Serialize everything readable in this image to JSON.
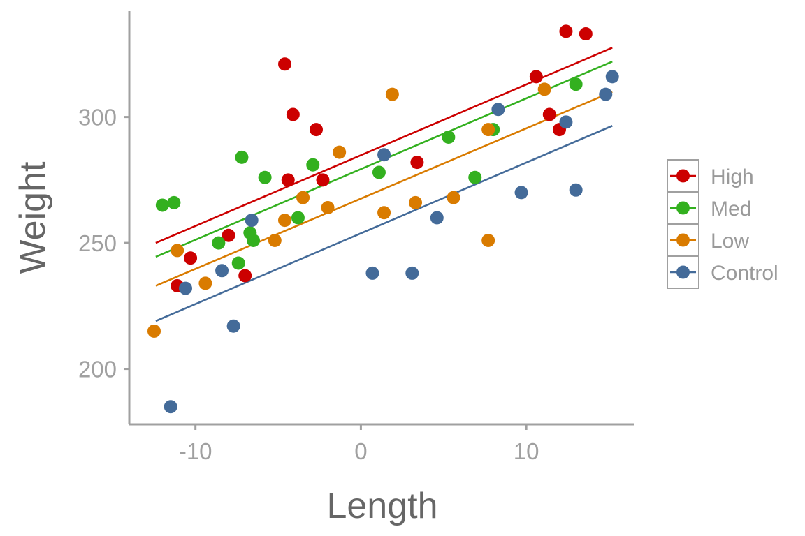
{
  "chart_data": {
    "type": "scatter",
    "title": "",
    "xlabel": "Length",
    "ylabel": "Weight",
    "xlim": [
      -14,
      16.5
    ],
    "ylim": [
      178,
      342
    ],
    "x_ticks": [
      -10,
      0,
      10
    ],
    "y_ticks": [
      200,
      250,
      300
    ],
    "x_tick_labels": [
      "-10",
      "0",
      "10"
    ],
    "y_tick_labels": [
      "200",
      "250",
      "300"
    ],
    "grid": false,
    "legend_position": "right",
    "series": [
      {
        "name": "High",
        "color": "#cc0000",
        "fit": {
          "x": [
            -12.4,
            15.2
          ],
          "y": [
            250,
            327.5
          ]
        },
        "points": [
          {
            "x": -4.6,
            "y": 321
          },
          {
            "x": -4.1,
            "y": 301
          },
          {
            "x": -2.7,
            "y": 295
          },
          {
            "x": -4.4,
            "y": 275
          },
          {
            "x": -2.3,
            "y": 275
          },
          {
            "x": -8.0,
            "y": 253
          },
          {
            "x": -10.3,
            "y": 244
          },
          {
            "x": -11.1,
            "y": 233
          },
          {
            "x": -7.0,
            "y": 237
          },
          {
            "x": 3.4,
            "y": 282
          },
          {
            "x": 10.6,
            "y": 316
          },
          {
            "x": 11.4,
            "y": 301
          },
          {
            "x": 12.0,
            "y": 295
          },
          {
            "x": 12.4,
            "y": 334
          },
          {
            "x": 13.6,
            "y": 333
          }
        ]
      },
      {
        "name": "Med",
        "color": "#33b01f",
        "fit": {
          "x": [
            -12.4,
            15.2
          ],
          "y": [
            244.5,
            322
          ]
        },
        "points": [
          {
            "x": -12.0,
            "y": 265
          },
          {
            "x": -11.3,
            "y": 266
          },
          {
            "x": -7.2,
            "y": 284
          },
          {
            "x": -5.8,
            "y": 276
          },
          {
            "x": -2.9,
            "y": 281
          },
          {
            "x": -8.6,
            "y": 250
          },
          {
            "x": -7.4,
            "y": 242
          },
          {
            "x": -6.7,
            "y": 254
          },
          {
            "x": -6.5,
            "y": 251
          },
          {
            "x": -3.8,
            "y": 260
          },
          {
            "x": 1.1,
            "y": 278
          },
          {
            "x": 5.3,
            "y": 292
          },
          {
            "x": 6.9,
            "y": 276
          },
          {
            "x": 8.0,
            "y": 295
          },
          {
            "x": 13.0,
            "y": 313
          }
        ]
      },
      {
        "name": "Low",
        "color": "#d97b00",
        "fit": {
          "x": [
            -12.4,
            15.2
          ],
          "y": [
            233,
            310
          ]
        },
        "points": [
          {
            "x": -12.5,
            "y": 215
          },
          {
            "x": -11.1,
            "y": 247
          },
          {
            "x": -9.4,
            "y": 234
          },
          {
            "x": -5.2,
            "y": 251
          },
          {
            "x": -4.6,
            "y": 259
          },
          {
            "x": -3.5,
            "y": 268
          },
          {
            "x": -2.0,
            "y": 264
          },
          {
            "x": -1.3,
            "y": 286
          },
          {
            "x": 1.4,
            "y": 262
          },
          {
            "x": 1.9,
            "y": 309
          },
          {
            "x": 3.3,
            "y": 266
          },
          {
            "x": 5.6,
            "y": 268
          },
          {
            "x": 7.7,
            "y": 251
          },
          {
            "x": 7.7,
            "y": 295
          },
          {
            "x": 11.1,
            "y": 311
          }
        ]
      },
      {
        "name": "Control",
        "color": "#446b99",
        "fit": {
          "x": [
            -12.4,
            15.2
          ],
          "y": [
            219,
            296.5
          ]
        },
        "points": [
          {
            "x": -11.5,
            "y": 185
          },
          {
            "x": -10.6,
            "y": 232
          },
          {
            "x": -8.4,
            "y": 239
          },
          {
            "x": -7.7,
            "y": 217
          },
          {
            "x": -6.6,
            "y": 259
          },
          {
            "x": 1.4,
            "y": 285
          },
          {
            "x": 0.7,
            "y": 238
          },
          {
            "x": 3.1,
            "y": 238
          },
          {
            "x": 4.6,
            "y": 260
          },
          {
            "x": 8.3,
            "y": 303
          },
          {
            "x": 9.7,
            "y": 270
          },
          {
            "x": 12.4,
            "y": 298
          },
          {
            "x": 13.0,
            "y": 271
          },
          {
            "x": 14.8,
            "y": 309
          },
          {
            "x": 15.2,
            "y": 316
          }
        ]
      }
    ]
  }
}
